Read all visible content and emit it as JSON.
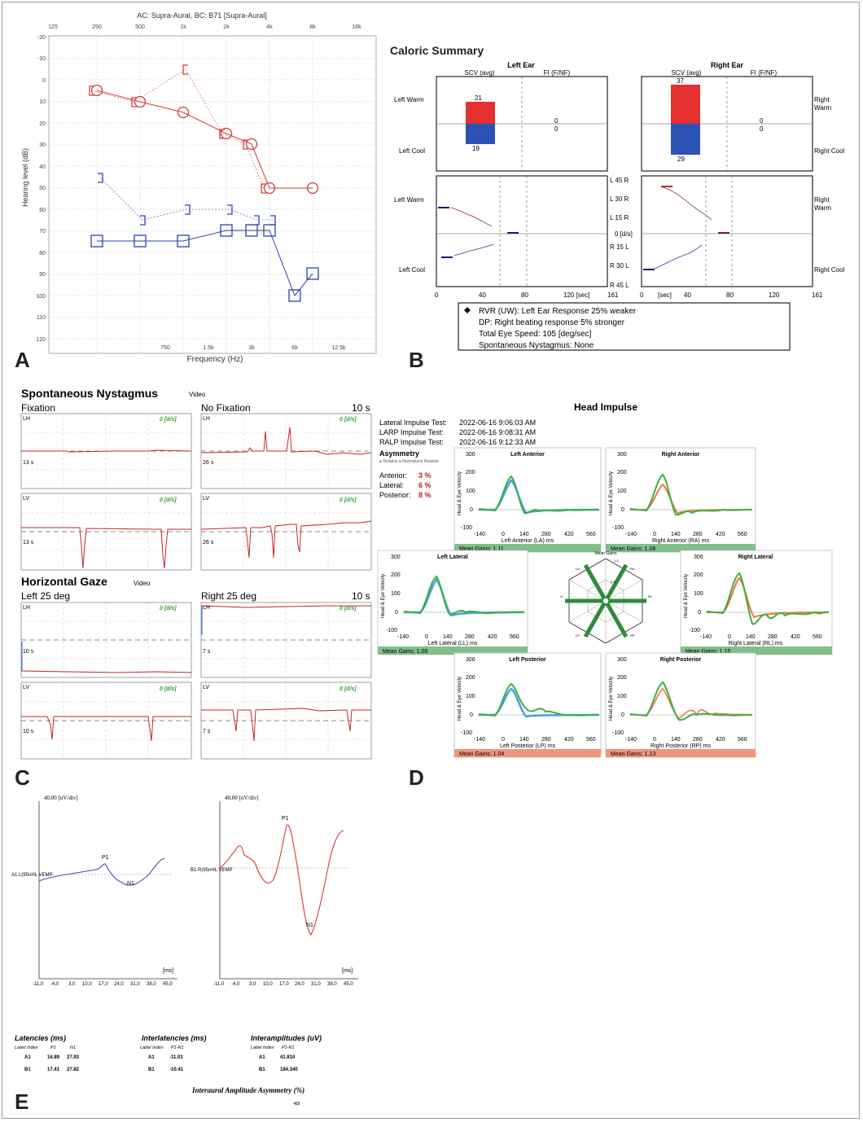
{
  "panel_labels": [
    "A",
    "B",
    "C",
    "D",
    "E"
  ],
  "colors": {
    "red": "#d33b3b",
    "blue": "#2b40b0",
    "green": "#3b9a3b",
    "gain_green": "#7fbf8c",
    "gain_orange": "#f0957a"
  },
  "panelA": {
    "title": "AC: Supra-Aural, BC: B71 [Supra-Aural]",
    "top_freqs": [
      "125",
      "250",
      "500",
      "1k",
      "2k",
      "4k",
      "8k",
      "16k"
    ],
    "bottom_freqs": [
      "750",
      "1.5k",
      "3k",
      "6k",
      "12.5k"
    ],
    "xlabel": "Frequency (Hz)",
    "ylabel": "Hearing level (dB)",
    "y_ticks": [
      "-20",
      "-10",
      "0",
      "10",
      "20",
      "30",
      "40",
      "50",
      "60",
      "70",
      "80",
      "90",
      "100",
      "110",
      "120"
    ]
  },
  "panelB": {
    "title": "Caloric Summary",
    "left_ear": "Left Ear",
    "right_ear": "Right Ear",
    "scv": "SCV (avg)",
    "fi": "FI (F/NF)",
    "left_warm": "Left Warm",
    "left_cool": "Left Cool",
    "right_warm_1": "Right",
    "right_warm_2": "Warm",
    "right_cool": "Right Cool",
    "values": {
      "lw": "21",
      "lc": "19",
      "rw": "37",
      "rc": "29",
      "fi_top": "0",
      "fi_bot": "0"
    },
    "mid_scale": [
      "L 45 R",
      "L 30 R",
      "L 15 R",
      "0 [d/s]",
      "R 15 L",
      "R 30 L",
      "R 45 L"
    ],
    "x_left": [
      "0",
      "40",
      "80",
      "120 [sec]",
      "161"
    ],
    "x_right": [
      "0",
      "[sec]",
      "40",
      "80",
      "120",
      "161"
    ],
    "summary": [
      "RVR (UW): Left Ear Response 25% weaker",
      "DP: Right beating response 5% stronger",
      "Total Eye Speed: 105 [deg/sec]",
      "Spontaneous Nystagmus: None"
    ]
  },
  "panelC": {
    "title1": "Spontaneous Nystagmus",
    "video": "Video",
    "fixation": "Fixation",
    "no_fixation": "No Fixation",
    "ten_s": "10 s",
    "title2": "Horizontal Gaze",
    "left25": "Left 25 deg",
    "right25": "Right 25 deg",
    "ds": "0 [d/s]",
    "lh": "LH",
    "lv": "LV",
    "times": [
      "13 s",
      "26 s",
      "13 s",
      "26 s",
      "10 s",
      "7 s",
      "10 s",
      "7 s"
    ]
  },
  "panelD": {
    "title": "Head Impulse",
    "tests": [
      {
        "label": "Lateral Impulse Test:",
        "date": "2022-06-16 9:06:03 AM"
      },
      {
        "label": "LARP Impulse Test:",
        "date": "2022-06-16 9:08:31 AM"
      },
      {
        "label": "RALP Impulse Test:",
        "date": "2022-06-16 9:12:33 AM"
      }
    ],
    "asym_title": "Asymmetry",
    "asym_legend": "● Relative  ● Normalized Relative",
    "asym": [
      {
        "label": "Anterior:",
        "value": "3 %"
      },
      {
        "label": "Lateral:",
        "value": "6 %"
      },
      {
        "label": "Posterior:",
        "value": "8 %"
      }
    ],
    "y_ticks": [
      "300",
      "200",
      "100",
      "0",
      "-100"
    ],
    "x_ticks": [
      "-140",
      "0",
      "140",
      "280",
      "420",
      "560"
    ],
    "ylabel": "Head & Eye Velocity",
    "plots": [
      {
        "title": "Left Anterior",
        "xlabel": "Left Anterior (LA) ms",
        "gain": "Mean Gains: 1.11"
      },
      {
        "title": "Right Anterior",
        "xlabel": "Right Anterior (RA) ms",
        "gain": "Mean Gains: 1.08"
      },
      {
        "title": "Left Lateral",
        "xlabel": "Left Lateral (LL) ms",
        "gain": "Mean Gains: 1.08"
      },
      {
        "title": "Right Lateral",
        "xlabel": "Right Lateral (RL) ms",
        "gain": "Mean Gains: 1.15"
      },
      {
        "title": "Left Posterior",
        "xlabel": "Left Posterior (LP) ms",
        "gain": "Mean Gains: 1.04"
      },
      {
        "title": "Right Posterior",
        "xlabel": "Right Posterior (RP) ms",
        "gain": "Mean Gains: 1.13"
      }
    ],
    "hex_title": "Mean Gains",
    "hex_labels": [
      "LA",
      "RA",
      "LL",
      "RL",
      "LP",
      "RP"
    ],
    "hex_scale": [
      "1.0",
      "0.5"
    ]
  },
  "panelE": {
    "scale": "40,00 [uV/div]",
    "ms": "[ms]",
    "x_ticks": [
      "-11,0",
      "-4,0",
      "3,0",
      "10,0",
      "17,0",
      "24,0",
      "31,0",
      "38,0",
      "45,0"
    ],
    "left_label": "A1 L(95nHL VEMP",
    "right_label": "B1 R(95nHL VEMP",
    "p1": "P1",
    "n1": "N1",
    "lat_title": "Latencies (ms)",
    "inter_title": "Interlatencies (ms)",
    "amp_title": "Interamplitudes (uV)",
    "label_index": "Label Index",
    "p1h": "P1",
    "n1h": "N1",
    "p1n1": "P1-N1",
    "rows": [
      {
        "label": "A1",
        "p1": "16.89",
        "n1": "27.93",
        "inter": "-11.03",
        "amp": "41.810"
      },
      {
        "label": "B1",
        "p1": "17.41",
        "n1": "27.82",
        "inter": "-10.41",
        "amp": "184.340"
      }
    ],
    "asym_title": "Interaural Amplitude Asymmetry (%)",
    "asym_value": "-63"
  }
}
